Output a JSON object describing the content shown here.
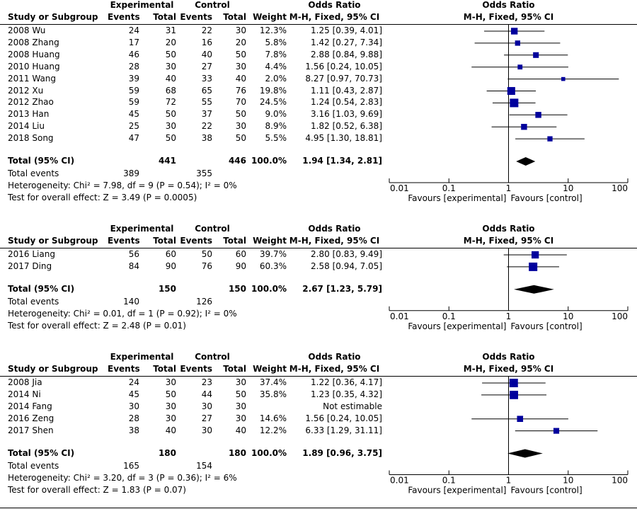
{
  "headers": {
    "study": "Study or Subgroup",
    "experimental": "Experimental",
    "control": "Control",
    "events": "Events",
    "total": "Total",
    "weight": "Weight",
    "or_title": "Odds Ratio",
    "or_method": "M-H, Fixed, 95% CI"
  },
  "axis": {
    "ticks": [
      "0.01",
      "0.1",
      "1",
      "10",
      "100"
    ],
    "favours_left": "Favours [experimental]",
    "favours_right": "Favours [control]"
  },
  "labels": {
    "total_ci": "Total (95% CI)",
    "total_events": "Total events"
  },
  "colors": {
    "square": "#00009c",
    "diamond": "#000000",
    "line": "#000000"
  },
  "chart_data": [
    {
      "type": "forest",
      "studies": [
        {
          "name": "2008 Wu",
          "e_events": "24",
          "e_total": "31",
          "c_events": "22",
          "c_total": "30",
          "weight": "12.3%",
          "ci_text": "1.25 [0.39, 4.01]",
          "or": 1.25,
          "lo": 0.39,
          "hi": 4.01
        },
        {
          "name": "2008 Zhang",
          "e_events": "17",
          "e_total": "20",
          "c_events": "16",
          "c_total": "20",
          "weight": "5.8%",
          "ci_text": "1.42 [0.27, 7.34]",
          "or": 1.42,
          "lo": 0.27,
          "hi": 7.34
        },
        {
          "name": "2008 Huang",
          "e_events": "46",
          "e_total": "50",
          "c_events": "40",
          "c_total": "50",
          "weight": "7.8%",
          "ci_text": "2.88 [0.84, 9.88]",
          "or": 2.88,
          "lo": 0.84,
          "hi": 9.88
        },
        {
          "name": "2010 Huang",
          "e_events": "28",
          "e_total": "30",
          "c_events": "27",
          "c_total": "30",
          "weight": "4.4%",
          "ci_text": "1.56 [0.24, 10.05]",
          "or": 1.56,
          "lo": 0.24,
          "hi": 10.05
        },
        {
          "name": "2011 Wang",
          "e_events": "39",
          "e_total": "40",
          "c_events": "33",
          "c_total": "40",
          "weight": "2.0%",
          "ci_text": "8.27 [0.97, 70.73]",
          "or": 8.27,
          "lo": 0.97,
          "hi": 70.73
        },
        {
          "name": "2012 Xu",
          "e_events": "59",
          "e_total": "68",
          "c_events": "65",
          "c_total": "76",
          "weight": "19.8%",
          "ci_text": "1.11 [0.43, 2.87]",
          "or": 1.11,
          "lo": 0.43,
          "hi": 2.87
        },
        {
          "name": "2012 Zhao",
          "e_events": "59",
          "e_total": "72",
          "c_events": "55",
          "c_total": "70",
          "weight": "24.5%",
          "ci_text": "1.24 [0.54, 2.83]",
          "or": 1.24,
          "lo": 0.54,
          "hi": 2.83
        },
        {
          "name": "2013 Han",
          "e_events": "45",
          "e_total": "50",
          "c_events": "37",
          "c_total": "50",
          "weight": "9.0%",
          "ci_text": "3.16 [1.03, 9.69]",
          "or": 3.16,
          "lo": 1.03,
          "hi": 9.69
        },
        {
          "name": "2014 Liu",
          "e_events": "25",
          "e_total": "30",
          "c_events": "22",
          "c_total": "30",
          "weight": "8.9%",
          "ci_text": "1.82 [0.52, 6.38]",
          "or": 1.82,
          "lo": 0.52,
          "hi": 6.38
        },
        {
          "name": "2018 Song",
          "e_events": "47",
          "e_total": "50",
          "c_events": "38",
          "c_total": "50",
          "weight": "5.5%",
          "ci_text": "4.95 [1.30, 18.81]",
          "or": 4.95,
          "lo": 1.3,
          "hi": 18.81
        }
      ],
      "total": {
        "e_total": "441",
        "c_total": "446",
        "weight": "100.0%",
        "ci_text": "1.94 [1.34, 2.81]",
        "or": 1.94,
        "lo": 1.34,
        "hi": 2.81
      },
      "total_events": {
        "e": "389",
        "c": "355"
      },
      "heterogeneity": "Heterogeneity: Chi² = 7.98, df = 9 (P = 0.54); I² = 0%",
      "overall_effect": "Test for overall effect: Z = 3.49 (P = 0.0005)",
      "x_scale": "log",
      "xlim": [
        0.01,
        100
      ]
    },
    {
      "type": "forest",
      "studies": [
        {
          "name": "2016 Liang",
          "e_events": "56",
          "e_total": "60",
          "c_events": "50",
          "c_total": "60",
          "weight": "39.7%",
          "ci_text": "2.80 [0.83, 9.49]",
          "or": 2.8,
          "lo": 0.83,
          "hi": 9.49
        },
        {
          "name": "2017 Ding",
          "e_events": "84",
          "e_total": "90",
          "c_events": "76",
          "c_total": "90",
          "weight": "60.3%",
          "ci_text": "2.58 [0.94, 7.05]",
          "or": 2.58,
          "lo": 0.94,
          "hi": 7.05
        }
      ],
      "total": {
        "e_total": "150",
        "c_total": "150",
        "weight": "100.0%",
        "ci_text": "2.67 [1.23, 5.79]",
        "or": 2.67,
        "lo": 1.23,
        "hi": 5.79
      },
      "total_events": {
        "e": "140",
        "c": "126"
      },
      "heterogeneity": "Heterogeneity: Chi² = 0.01, df = 1 (P = 0.92); I² = 0%",
      "overall_effect": "Test for overall effect: Z = 2.48 (P = 0.01)",
      "x_scale": "log",
      "xlim": [
        0.01,
        100
      ]
    },
    {
      "type": "forest",
      "studies": [
        {
          "name": "2008 Jia",
          "e_events": "24",
          "e_total": "30",
          "c_events": "23",
          "c_total": "30",
          "weight": "37.4%",
          "ci_text": "1.22 [0.36, 4.17]",
          "or": 1.22,
          "lo": 0.36,
          "hi": 4.17
        },
        {
          "name": "2014 Ni",
          "e_events": "45",
          "e_total": "50",
          "c_events": "44",
          "c_total": "50",
          "weight": "35.8%",
          "ci_text": "1.23 [0.35, 4.32]",
          "or": 1.23,
          "lo": 0.35,
          "hi": 4.32
        },
        {
          "name": "2014 Fang",
          "e_events": "30",
          "e_total": "30",
          "c_events": "30",
          "c_total": "30",
          "weight": "",
          "ci_text": "Not estimable",
          "or": null,
          "lo": null,
          "hi": null
        },
        {
          "name": "2016 Zeng",
          "e_events": "28",
          "e_total": "30",
          "c_events": "27",
          "c_total": "30",
          "weight": "14.6%",
          "ci_text": "1.56 [0.24, 10.05]",
          "or": 1.56,
          "lo": 0.24,
          "hi": 10.05
        },
        {
          "name": "2017 Shen",
          "e_events": "38",
          "e_total": "40",
          "c_events": "30",
          "c_total": "40",
          "weight": "12.2%",
          "ci_text": "6.33 [1.29, 31.11]",
          "or": 6.33,
          "lo": 1.29,
          "hi": 31.11
        }
      ],
      "total": {
        "e_total": "180",
        "c_total": "180",
        "weight": "100.0%",
        "ci_text": "1.89 [0.96, 3.75]",
        "or": 1.89,
        "lo": 0.96,
        "hi": 3.75
      },
      "total_events": {
        "e": "165",
        "c": "154"
      },
      "heterogeneity": "Heterogeneity: Chi² = 3.20, df = 3 (P = 0.36); I² = 6%",
      "overall_effect": "Test for overall effect: Z = 1.83 (P = 0.07)",
      "x_scale": "log",
      "xlim": [
        0.01,
        100
      ]
    }
  ]
}
